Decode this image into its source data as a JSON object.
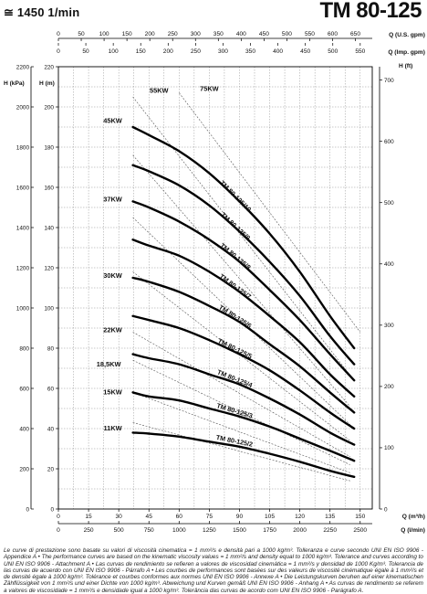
{
  "header": {
    "speed": "≅ 1450 1/min",
    "model": "TM 80-125"
  },
  "footnote": "Le curve di prestazione sono basate su valori di viscosità cinematica = 1 mm²/s e densità pari a 1000 kg/m³. Tolleranza e curve secondo UNI EN ISO 9906 - Appendice A • The performance curves are based on the kinematic viscosity values = 1 mm²/s and density equal to 1000 kg/m³. Tolerance and curves according to UNI EN ISO 9906 - Attachment A • Las curvas de rendimiento se refieren a valores de viscosidad cinemática = 1 mm²/s y densidad de 1000 Kg/m³. Tolerancia de las curvas de acuerdo con UNI EN ISO 9906 - Párrafo A • Les courbes de performances sont basées sur des valeurs de viscosité cinématique égale à 1 mm²/s et de densité égale à 1000 kg/m³. Tolérance et courbes conformes aux normes UNI EN ISO 9906 - Annexe A • Die Leistungskurven beruhen auf einer kinematischen Zähflüssigkeit von 1 mm²/s und einer Dichte von 1000 kg/m³. Abweichung und Kurven gemäß UNI EN ISO 9906 - Anhang A • As curvas de rendimento se referem a valores de viscosidade = 1 mm²/s e densidade igual a 1000 kg/m³. Tolerância das curvas de acordo com UNI EN ISO 9906 - Parágrafo A.",
  "chart_data": {
    "type": "line",
    "title": "TM 80-125",
    "x_axes": {
      "q_us_gpm": {
        "label": "Q (U.S. gpm)",
        "ticks": [
          0,
          50,
          100,
          150,
          200,
          250,
          300,
          350,
          400,
          450,
          500,
          550,
          600,
          650
        ]
      },
      "q_imp_gpm": {
        "label": "Q (Imp. gpm)",
        "ticks": [
          0,
          50,
          100,
          150,
          200,
          250,
          300,
          350,
          400,
          450,
          500,
          550
        ]
      },
      "q_m3h": {
        "label": "Q (m³/h)",
        "ticks": [
          0,
          15,
          30,
          45,
          60,
          75,
          90,
          105,
          120,
          135,
          150
        ],
        "range": [
          0,
          156
        ]
      },
      "q_lmin": {
        "label": "Q (l/min)",
        "ticks": [
          0,
          250,
          500,
          750,
          1000,
          1250,
          1500,
          1750,
          2000,
          2250,
          2500
        ]
      }
    },
    "y_axes": {
      "h_kpa": {
        "label": "H (kPa)",
        "ticks": [
          0,
          200,
          400,
          600,
          800,
          1000,
          1200,
          1400,
          1600,
          1800,
          2000,
          2200
        ]
      },
      "h_m": {
        "label": "H (m)",
        "ticks": [
          0,
          20,
          40,
          60,
          80,
          100,
          120,
          140,
          160,
          180,
          200,
          220
        ],
        "range": [
          0,
          220
        ]
      },
      "h_ft": {
        "label": "H (ft)",
        "ticks": [
          0,
          100,
          200,
          300,
          400,
          500,
          600,
          700
        ]
      }
    },
    "grid": true,
    "series": [
      {
        "name": "TM 80-125/10",
        "x": [
          37,
          45,
          60,
          75,
          90,
          105,
          120,
          135,
          147
        ],
        "y": [
          190,
          186,
          178,
          167,
          153,
          137,
          118,
          96,
          80
        ]
      },
      {
        "name": "TM 80-125/9",
        "x": [
          37,
          45,
          60,
          75,
          90,
          105,
          120,
          135,
          147
        ],
        "y": [
          171,
          168,
          161,
          151,
          138,
          123,
          106,
          86,
          72
        ]
      },
      {
        "name": "TM 80-125/8",
        "x": [
          37,
          45,
          60,
          75,
          90,
          105,
          120,
          135,
          147
        ],
        "y": [
          153,
          150,
          143,
          134,
          123,
          109,
          94,
          77,
          64
        ]
      },
      {
        "name": "TM 80-125/7",
        "x": [
          37,
          45,
          60,
          75,
          90,
          105,
          120,
          135,
          147
        ],
        "y": [
          134,
          131,
          126,
          118,
          108,
          96,
          83,
          67,
          56
        ]
      },
      {
        "name": "TM 80-125/6",
        "x": [
          37,
          45,
          60,
          75,
          90,
          105,
          120,
          135,
          147
        ],
        "y": [
          115,
          113,
          108,
          101,
          93,
          82,
          71,
          58,
          48
        ]
      },
      {
        "name": "TM 80-125/5",
        "x": [
          37,
          45,
          60,
          75,
          90,
          105,
          120,
          135,
          147
        ],
        "y": [
          96,
          94,
          90,
          84,
          77,
          69,
          59,
          48,
          40
        ]
      },
      {
        "name": "TM 80-125/4",
        "x": [
          37,
          45,
          60,
          75,
          90,
          105,
          120,
          135,
          147
        ],
        "y": [
          77,
          75,
          72,
          67,
          62,
          55,
          47,
          38,
          32
        ]
      },
      {
        "name": "TM 80-125/3",
        "x": [
          37,
          45,
          60,
          75,
          90,
          105,
          120,
          135,
          147
        ],
        "y": [
          58,
          56,
          54,
          50,
          46,
          41,
          35,
          29,
          24
        ]
      },
      {
        "name": "TM 80-125/2",
        "x": [
          37,
          45,
          60,
          75,
          90,
          105,
          120,
          135,
          147
        ],
        "y": [
          38,
          37.5,
          36,
          33.5,
          31,
          27.5,
          23.5,
          19,
          16
        ]
      }
    ],
    "power_limits": [
      {
        "label": "75KW",
        "x": [
          60,
          150
        ],
        "y": [
          207,
          88
        ]
      },
      {
        "label": "55KW",
        "x": [
          37,
          147
        ],
        "y": [
          205,
          64
        ]
      },
      {
        "label": "45KW",
        "x": [
          37,
          145
        ],
        "y": [
          176,
          51
        ]
      },
      {
        "label": "37KW",
        "x": [
          37,
          145
        ],
        "y": [
          145,
          42
        ]
      },
      {
        "label": "30KW",
        "x": [
          37,
          145
        ],
        "y": [
          118,
          34
        ]
      },
      {
        "label": "22KW",
        "x": [
          37,
          145
        ],
        "y": [
          88,
          26
        ]
      },
      {
        "label": "18,5KW",
        "x": [
          37,
          145
        ],
        "y": [
          74,
          22
        ]
      },
      {
        "label": "15KW",
        "x": [
          37,
          145
        ],
        "y": [
          58,
          18
        ]
      },
      {
        "label": "11KW",
        "x": [
          37,
          145
        ],
        "y": [
          43,
          14
        ]
      }
    ],
    "motor_labels": [
      {
        "label": "45KW",
        "x": 27,
        "y": 192
      },
      {
        "label": "37KW",
        "x": 27,
        "y": 153
      },
      {
        "label": "30KW",
        "x": 27,
        "y": 115
      },
      {
        "label": "22KW",
        "x": 27,
        "y": 88
      },
      {
        "label": "18,5KW",
        "x": 25,
        "y": 71
      },
      {
        "label": "15KW",
        "x": 27,
        "y": 57
      },
      {
        "label": "11KW",
        "x": 27,
        "y": 39
      },
      {
        "label": "55KW",
        "x": 50,
        "y": 207
      },
      {
        "label": "75KW",
        "x": 75,
        "y": 208
      }
    ]
  }
}
